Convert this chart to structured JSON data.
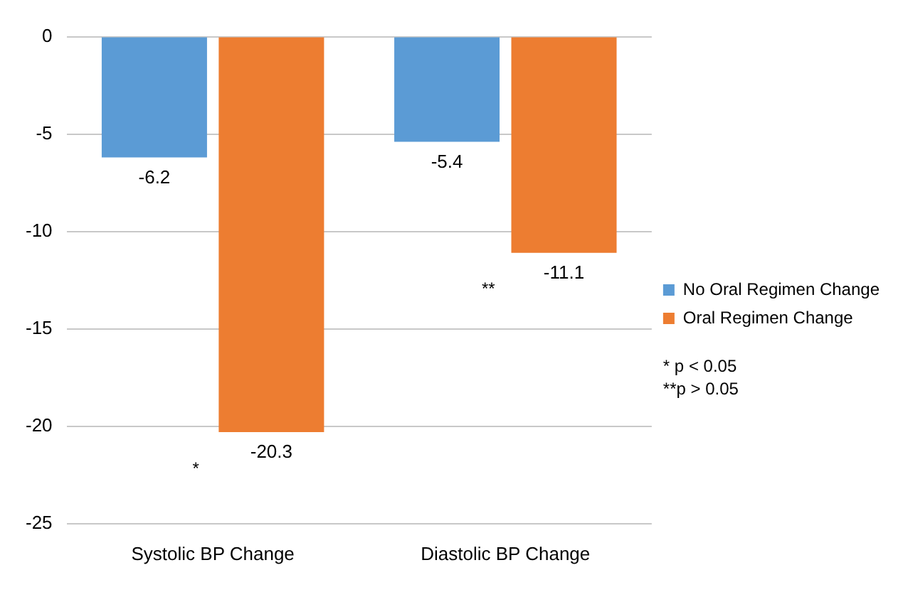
{
  "chart_data": {
    "type": "bar",
    "categories": [
      "Systolic BP Change",
      "Diastolic BP Change"
    ],
    "series": [
      {
        "name": "No Oral Regimen Change",
        "color": "#5b9bd5",
        "values": [
          -6.2,
          -5.4
        ]
      },
      {
        "name": "Oral Regimen Change",
        "color": "#ed7d31",
        "values": [
          -20.3,
          -11.1
        ]
      }
    ],
    "ylim": [
      -25,
      0
    ],
    "yticks": [
      -25,
      -20,
      -15,
      -10,
      -5,
      0
    ],
    "grid": "y",
    "legend": "right",
    "data_labels": true,
    "annotations": [
      {
        "text": "*",
        "x": "Systolic BP Change",
        "y": -20.3
      },
      {
        "text": "**",
        "x": "Diastolic BP Change",
        "y": -11.1
      },
      "* p < 0.05",
      "**p > 0.05"
    ]
  }
}
